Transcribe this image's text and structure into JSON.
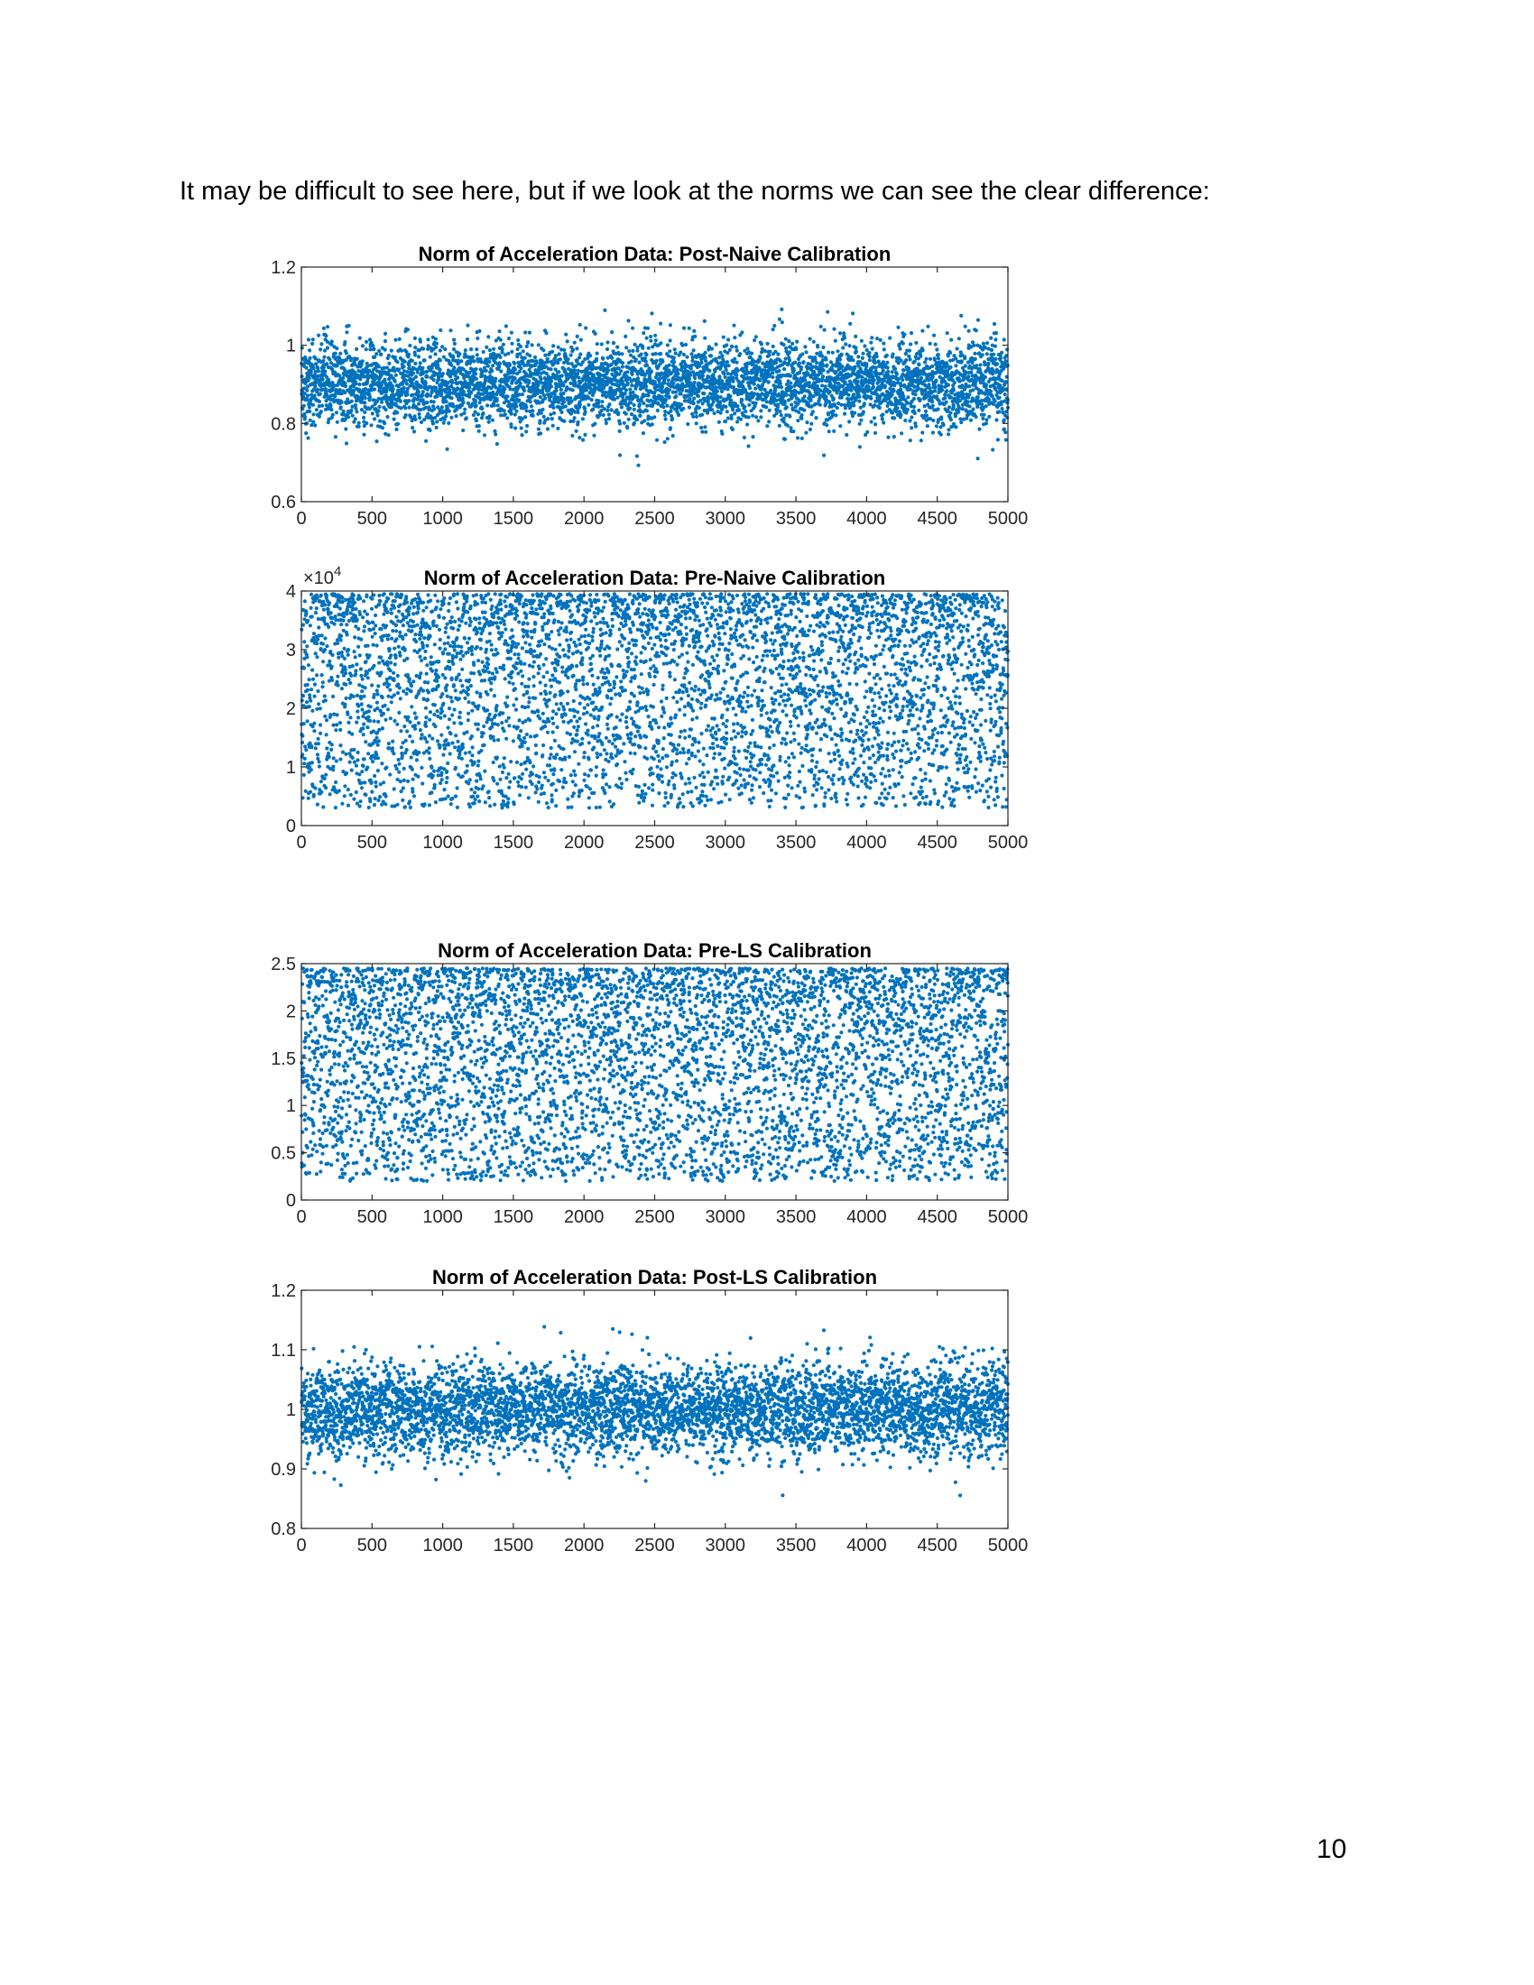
{
  "intro_text": "It may be difficult to see here, but if we look at the norms we can see the clear difference:",
  "page_number": "10",
  "colors": {
    "marker": "#0072BD",
    "axis": "#262626",
    "tick_text": "#262626"
  },
  "chart_data": [
    {
      "type": "scatter",
      "title": "Norm of Acceleration Data: Post-Naive Calibration",
      "xlim": [
        0,
        5000
      ],
      "ylim": [
        0.6,
        1.2
      ],
      "xticks": [
        "0",
        "500",
        "1000",
        "1500",
        "2000",
        "2500",
        "3000",
        "3500",
        "4000",
        "4500",
        "5000"
      ],
      "yticks": [
        "0.6",
        "0.8",
        "1",
        "1.2"
      ],
      "exponent_label": "",
      "n_points": 5000,
      "distribution": {
        "center": 0.9,
        "spread": 0.055,
        "range": [
          0.68,
          1.16
        ]
      }
    },
    {
      "type": "scatter",
      "title": "Norm of Acceleration Data: Pre-Naive Calibration",
      "xlim": [
        0,
        5000
      ],
      "ylim": [
        0,
        40000
      ],
      "xticks": [
        "0",
        "500",
        "1000",
        "1500",
        "2000",
        "2500",
        "3000",
        "3500",
        "4000",
        "4500",
        "5000"
      ],
      "yticks": [
        "0",
        "1",
        "2",
        "3",
        "4"
      ],
      "exponent_label": "×10^4",
      "n_points": 5000,
      "distribution": {
        "center": 27000,
        "spread": 9000,
        "range": [
          3000,
          39500
        ]
      }
    },
    {
      "type": "scatter",
      "title": "Norm of Acceleration Data: Pre-LS Calibration",
      "xlim": [
        0,
        5000
      ],
      "ylim": [
        0,
        2.5
      ],
      "xticks": [
        "0",
        "500",
        "1000",
        "1500",
        "2000",
        "2500",
        "3000",
        "3500",
        "4000",
        "4500",
        "5000"
      ],
      "yticks": [
        "0",
        "0.5",
        "1",
        "1.5",
        "2",
        "2.5"
      ],
      "exponent_label": "",
      "n_points": 5000,
      "distribution": {
        "center": 1.6,
        "spread": 0.55,
        "range": [
          0.2,
          2.45
        ]
      }
    },
    {
      "type": "scatter",
      "title": "Norm of Acceleration Data: Post-LS Calibration",
      "xlim": [
        0,
        5000
      ],
      "ylim": [
        0.8,
        1.2
      ],
      "xticks": [
        "0",
        "500",
        "1000",
        "1500",
        "2000",
        "2500",
        "3000",
        "3500",
        "4000",
        "4500",
        "5000"
      ],
      "yticks": [
        "0.8",
        "0.9",
        "1",
        "1.1",
        "1.2"
      ],
      "exponent_label": "",
      "n_points": 5000,
      "distribution": {
        "center": 1.0,
        "spread": 0.04,
        "range": [
          0.82,
          1.17
        ]
      }
    }
  ]
}
